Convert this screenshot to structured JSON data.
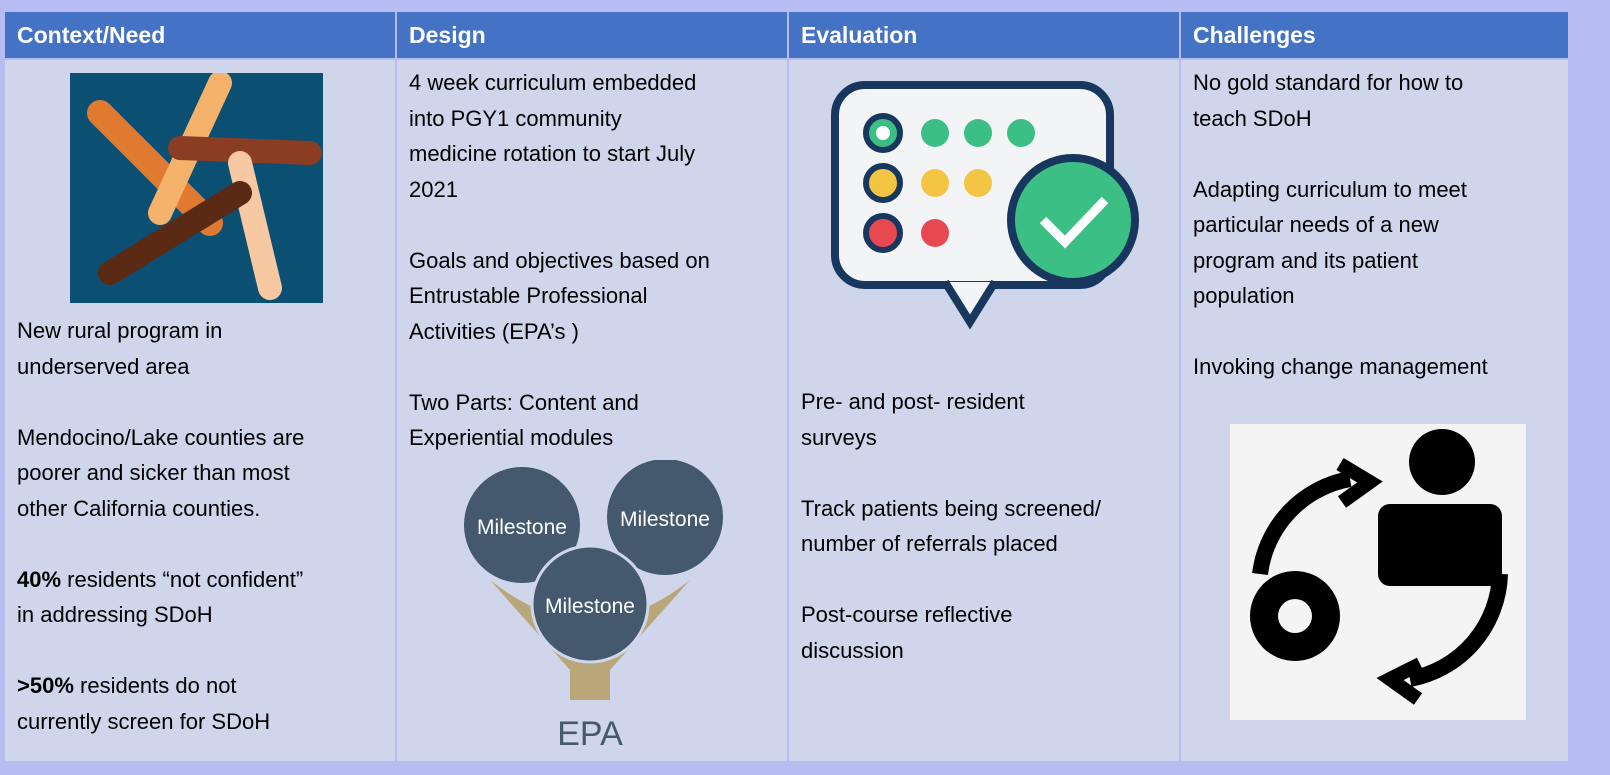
{
  "table": {
    "headers": [
      "Context/Need",
      "Design",
      "Evaluation",
      "Challenges"
    ],
    "columns": [
      {
        "paragraphs": [
          [
            "New rural program in",
            "underserved area"
          ],
          [
            "Mendocino/Lake counties are",
            "poorer and sicker than most",
            "other California counties."
          ],
          [
            {
              "bold": "40%",
              "text": " residents “not confident”"
            },
            "in addressing SDoH"
          ],
          [
            {
              "bold": ">50%",
              "text": " residents do not"
            },
            "currently screen for SDoH"
          ]
        ]
      },
      {
        "paragraphs": [
          [
            "4 week curriculum embedded",
            "into PGY1 community",
            "medicine rotation to start July",
            "2021"
          ],
          [
            "Goals and objectives based on",
            "Entrustable Professional",
            "Activities  (EPA’s )"
          ],
          [
            "Two Parts: Content and",
            "Experiential modules"
          ]
        ],
        "figure": {
          "circles": [
            "Milestone",
            "Milestone",
            "Milestone"
          ],
          "funnel": "EPA"
        }
      },
      {
        "paragraphs": [
          [
            "Pre- and post- resident",
            "surveys"
          ],
          [
            "Track patients being screened/",
            "number of referrals placed"
          ],
          [
            "Post-course reflective",
            "discussion"
          ]
        ]
      },
      {
        "paragraphs": [
          [
            "No gold standard for how to",
            "teach SDoH"
          ],
          [
            "Adapting curriculum to meet",
            "particular needs of a new",
            "program and its patient",
            "population"
          ],
          [
            "Invoking change management"
          ]
        ]
      }
    ]
  }
}
